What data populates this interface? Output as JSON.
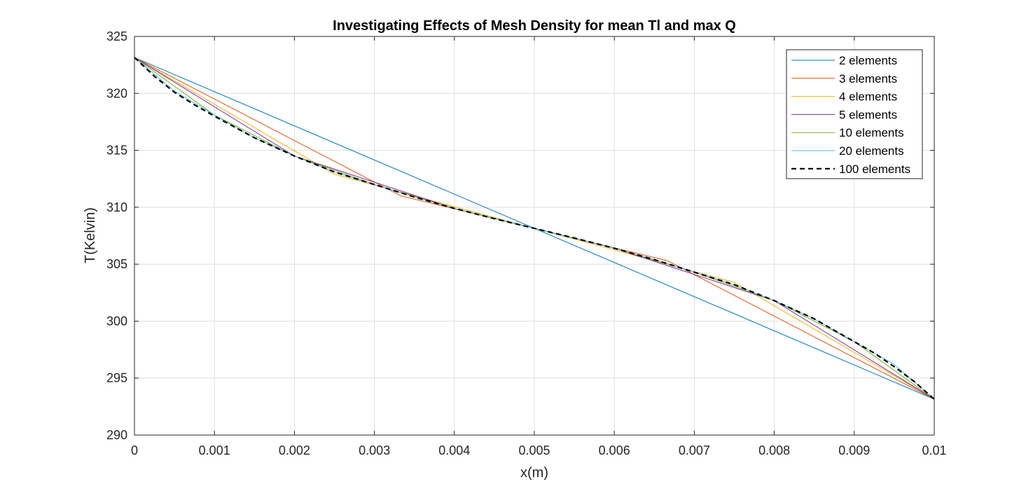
{
  "chart_data": {
    "type": "line",
    "title": "Investigating Effects of Mesh Density for mean Tl and max Q",
    "xlabel": "x(m)",
    "ylabel": "T(Kelvin)",
    "xlim": [
      0,
      0.01
    ],
    "ylim": [
      290,
      325
    ],
    "xticks": [
      0,
      0.001,
      0.002,
      0.003,
      0.004,
      0.005,
      0.006,
      0.007,
      0.008,
      0.009,
      0.01
    ],
    "xtick_labels": [
      "0",
      "0.001",
      "0.002",
      "0.003",
      "0.004",
      "0.005",
      "0.006",
      "0.007",
      "0.008",
      "0.009",
      "0.01"
    ],
    "yticks": [
      290,
      295,
      300,
      305,
      310,
      315,
      320,
      325
    ],
    "ytick_labels": [
      "290",
      "295",
      "300",
      "305",
      "310",
      "315",
      "320",
      "325"
    ],
    "grid": true,
    "legend_position": "top-right",
    "series": [
      {
        "name": "2 elements",
        "color": "#0072BD",
        "dash": "solid",
        "x": [
          0,
          0.005,
          0.01
        ],
        "y": [
          323.15,
          308.15,
          293.15
        ]
      },
      {
        "name": "3 elements",
        "color": "#D95319",
        "dash": "solid",
        "x": [
          0,
          0.003333,
          0.006667,
          0.01
        ],
        "y": [
          323.15,
          311.0,
          305.3,
          293.15
        ]
      },
      {
        "name": "4 elements",
        "color": "#EDB120",
        "dash": "solid",
        "x": [
          0,
          0.0025,
          0.005,
          0.0075,
          0.01
        ],
        "y": [
          323.15,
          312.9,
          308.15,
          303.4,
          293.15
        ]
      },
      {
        "name": "5 elements",
        "color": "#7E2F8E",
        "dash": "solid",
        "x": [
          0,
          0.002,
          0.004,
          0.006,
          0.008,
          0.01
        ],
        "y": [
          323.15,
          314.5,
          309.9,
          306.4,
          301.8,
          293.15
        ]
      },
      {
        "name": "10 elements",
        "color": "#77AC30",
        "dash": "solid",
        "x": [
          0,
          0.001,
          0.002,
          0.003,
          0.004,
          0.005,
          0.006,
          0.007,
          0.008,
          0.009,
          0.01
        ],
        "y": [
          323.15,
          318.1,
          314.5,
          312.0,
          309.9,
          308.15,
          306.4,
          304.3,
          301.8,
          298.2,
          293.15
        ]
      },
      {
        "name": "20 elements",
        "color": "#4DBEEE",
        "dash": "solid",
        "x": [
          0,
          0.0005,
          0.001,
          0.0015,
          0.002,
          0.0025,
          0.003,
          0.0035,
          0.004,
          0.0045,
          0.005,
          0.0055,
          0.006,
          0.0065,
          0.007,
          0.0075,
          0.008,
          0.0085,
          0.009,
          0.0095,
          0.01
        ],
        "y": [
          323.15,
          320.2,
          318.1,
          316.1,
          314.5,
          313.1,
          312.0,
          310.9,
          309.9,
          309.0,
          308.15,
          307.3,
          306.4,
          305.4,
          304.3,
          303.2,
          301.8,
          300.2,
          298.2,
          296.2,
          293.15
        ]
      },
      {
        "name": "100 elements",
        "color": "#000000",
        "dash": "dashed",
        "x": [
          0,
          0.00025,
          0.0005,
          0.00075,
          0.001,
          0.0015,
          0.002,
          0.0025,
          0.003,
          0.0035,
          0.004,
          0.0045,
          0.005,
          0.0055,
          0.006,
          0.0065,
          0.007,
          0.0075,
          0.008,
          0.0085,
          0.009,
          0.00925,
          0.0095,
          0.00975,
          0.01
        ],
        "y": [
          323.15,
          321.5,
          320.1,
          319.0,
          318.0,
          316.1,
          314.5,
          313.1,
          312.0,
          310.9,
          309.9,
          309.0,
          308.15,
          307.3,
          306.4,
          305.4,
          304.3,
          303.2,
          301.8,
          300.2,
          298.2,
          297.2,
          296.0,
          294.7,
          293.15
        ]
      }
    ]
  }
}
